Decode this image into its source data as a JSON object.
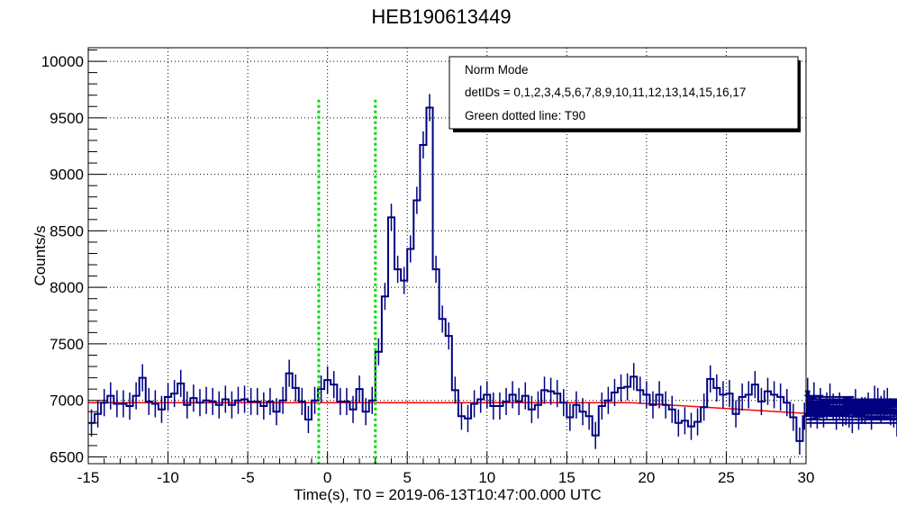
{
  "chart_data": {
    "type": "line",
    "title": "HEB190613449",
    "xlabel": "Time(s), T0 = 2019-06-13T10:47:00.000 UTC",
    "ylabel": "Counts/s",
    "xlim": [
      -15,
      30
    ],
    "ylim": [
      6440,
      10120
    ],
    "xticks": [
      -15,
      -10,
      -5,
      0,
      5,
      10,
      15,
      20,
      25,
      30
    ],
    "xtick_labels": [
      "-15",
      "-10",
      "-5",
      "0",
      "5",
      "10",
      "15",
      "20",
      "25",
      "30"
    ],
    "yticks": [
      6500,
      7000,
      7500,
      8000,
      8500,
      9000,
      9500,
      10000
    ],
    "ytick_labels": [
      "6500",
      "7000",
      "7500",
      "8000",
      "8500",
      "9000",
      "9500",
      "10000"
    ],
    "grid": true,
    "legend": {
      "placement": "top-right",
      "lines": [
        "Norm Mode",
        "detIDs = 0,1,2,3,4,5,6,7,8,9,10,11,12,13,14,15,16,17",
        "Green dotted line: T90"
      ]
    },
    "lightcurve": {
      "name": "light curve",
      "color": "#000080",
      "bin_width": 0.4,
      "x_start": -15.0,
      "error": 120,
      "values": [
        6800,
        6880,
        6980,
        7040,
        6970,
        6970,
        6950,
        7040,
        7200,
        6990,
        6970,
        6920,
        7030,
        7060,
        7150,
        6960,
        7020,
        6980,
        7000,
        6990,
        6960,
        7010,
        6960,
        7000,
        7010,
        6990,
        6990,
        6950,
        6990,
        6900,
        7000,
        7240,
        7110,
        6990,
        6830,
        7000,
        7100,
        7180,
        7140,
        6990,
        6990,
        6920,
        7100,
        6900,
        7000,
        7430,
        7920,
        8620,
        8160,
        8060,
        8340,
        8770,
        9260,
        9590,
        8160,
        7720,
        7570,
        7090,
        6860,
        6840,
        6970,
        7010,
        7050,
        6950,
        6950,
        6990,
        7050,
        6990,
        7040,
        6920,
        6960,
        7090,
        7080,
        7060,
        6980,
        6850,
        6960,
        6900,
        6860,
        6690,
        6950,
        7000,
        7070,
        7110,
        7120,
        7210,
        7090,
        7050,
        6960,
        7050,
        6960,
        6920,
        6800,
        6820,
        6770,
        6810,
        6940,
        7190,
        7110,
        7050,
        7060,
        6880,
        7030,
        7050,
        7140,
        6990,
        7080,
        7050,
        7030,
        6980,
        6850,
        6640,
        6860,
        7080,
        6880,
        7040,
        6870,
        6990,
        6880,
        6950,
        7030,
        6940,
        6860,
        6950,
        6890,
        6900,
        6880,
        6830,
        6980,
        6860,
        6910,
        6910,
        6950,
        6860,
        7010,
        6990,
        6920,
        6970,
        6990,
        6900,
        6880,
        6800
      ],
      "x_end": 30.0
    },
    "background_fit": {
      "name": "background fit",
      "color": "#ff0000",
      "x": [
        -15,
        19,
        30
      ],
      "y": [
        6980,
        6980,
        6885
      ]
    },
    "t90_lines": {
      "color": "#00dd00",
      "x": [
        -0.55,
        3.0
      ],
      "y_range": [
        6440,
        9660
      ]
    }
  }
}
